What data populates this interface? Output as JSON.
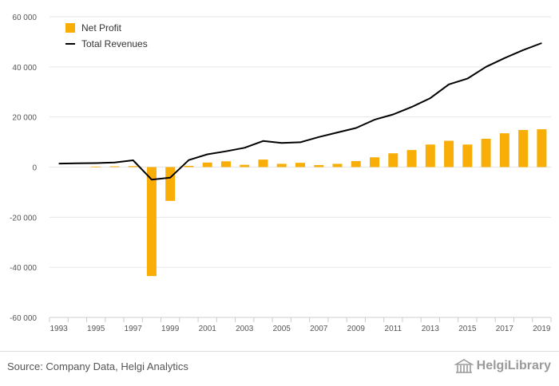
{
  "chart_data": {
    "type": "bar",
    "categories": [
      "1993",
      "1994",
      "1995",
      "1996",
      "1997",
      "1998",
      "1999",
      "2000",
      "2001",
      "2002",
      "2003",
      "2004",
      "2005",
      "2006",
      "2007",
      "2008",
      "2009",
      "2010",
      "2011",
      "2012",
      "2013",
      "2014",
      "2015",
      "2016",
      "2017",
      "2018",
      "2019"
    ],
    "x_tick_labels": [
      "1993",
      "1995",
      "1997",
      "1999",
      "2001",
      "2003",
      "2005",
      "2007",
      "2009",
      "2011",
      "2013",
      "2015",
      "2017",
      "2019"
    ],
    "y_tick_labels": [
      "60 000",
      "40 000",
      "20 000",
      "0",
      "-20 000",
      "-40 000",
      "-60 000"
    ],
    "y_ticks": [
      60000,
      40000,
      20000,
      0,
      -20000,
      -40000,
      -60000
    ],
    "ylim": [
      -60000,
      60000
    ],
    "grid": true,
    "legend_position": "top-left",
    "series": [
      {
        "name": "Net Profit",
        "type": "bar",
        "color": "#f8ae07",
        "values": [
          0,
          0,
          200,
          300,
          400,
          -43500,
          -13500,
          500,
          1800,
          2300,
          900,
          3000,
          1300,
          1700,
          800,
          1300,
          2400,
          3900,
          5500,
          6800,
          9000,
          10500,
          9000,
          11300,
          13500,
          14800,
          15100
        ]
      },
      {
        "name": "Total Revenues",
        "type": "line",
        "color": "#000000",
        "values": [
          1400,
          1500,
          1600,
          1800,
          2700,
          -5000,
          -4200,
          2800,
          5100,
          6300,
          7700,
          10400,
          9600,
          9900,
          12000,
          13800,
          15600,
          18900,
          21000,
          24000,
          27500,
          33000,
          35300,
          40000,
          43500,
          46700,
          49500
        ]
      }
    ]
  },
  "footer": {
    "source": "Source: Company Data, Helgi Analytics",
    "logo_text": "HelgiLibrary"
  }
}
